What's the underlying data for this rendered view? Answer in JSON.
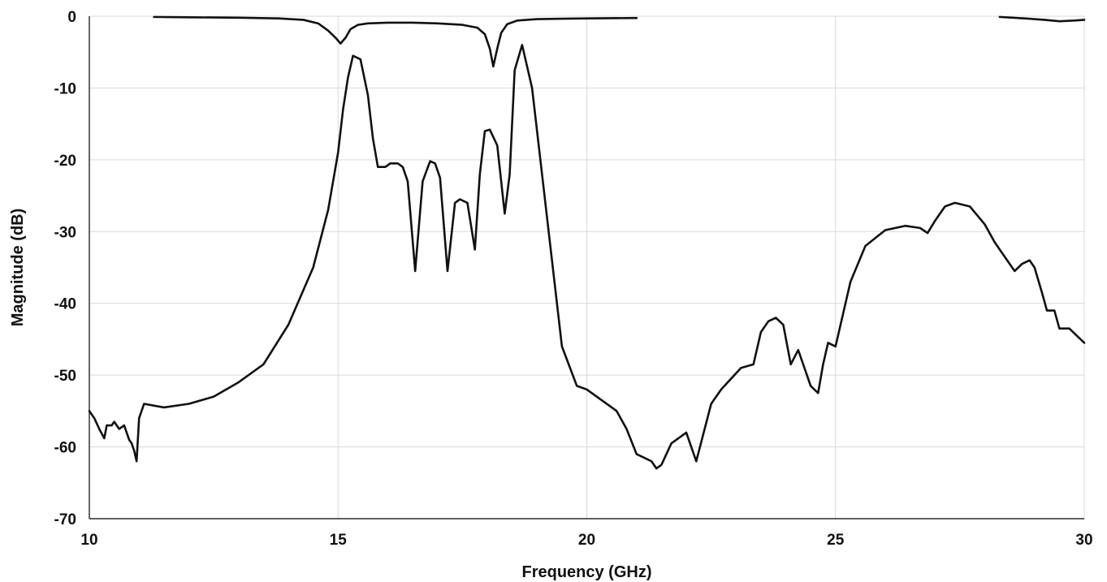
{
  "chart_data": {
    "type": "line",
    "title": "",
    "xlabel": "Frequency (GHz)",
    "ylabel": "Magnitude (dB)",
    "xlim": [
      10,
      30
    ],
    "ylim": [
      -70,
      0
    ],
    "x_ticks": [
      10,
      15,
      20,
      25,
      30
    ],
    "y_ticks": [
      0,
      -10,
      -20,
      -30,
      -40,
      -50,
      -60,
      -70
    ],
    "grid": true,
    "legend": "none",
    "line_color": "#111111",
    "series": [
      {
        "x": [
          11.3,
          12.0,
          13.0,
          13.8,
          14.3,
          14.6,
          14.8,
          14.95,
          15.05,
          15.15,
          15.25,
          15.4,
          15.6,
          16.0,
          16.5,
          17.0,
          17.5,
          17.8,
          17.95,
          18.05,
          18.12,
          18.2,
          18.28,
          18.4,
          18.6,
          19.0,
          19.5,
          20.0,
          21.0
        ],
        "y": [
          -0.1,
          -0.15,
          -0.2,
          -0.3,
          -0.5,
          -1.0,
          -2.0,
          -3.0,
          -3.8,
          -3.0,
          -1.8,
          -1.2,
          -1.0,
          -0.9,
          -0.9,
          -1.0,
          -1.2,
          -1.6,
          -2.5,
          -4.5,
          -7.0,
          -4.5,
          -2.3,
          -1.1,
          -0.6,
          -0.4,
          -0.35,
          -0.3,
          -0.25
        ]
      },
      {
        "x": [
          28.3,
          28.8,
          29.2,
          29.5,
          29.8,
          30.0
        ],
        "y": [
          -0.1,
          -0.3,
          -0.5,
          -0.7,
          -0.6,
          -0.5
        ]
      },
      {
        "x": [
          10.0,
          10.1,
          10.2,
          10.3,
          10.35,
          10.45,
          10.5,
          10.6,
          10.7,
          10.8,
          10.85,
          10.9,
          10.95,
          11.0,
          11.1,
          11.5,
          12.0,
          12.5,
          13.0,
          13.5,
          14.0,
          14.5,
          14.8,
          15.0,
          15.1,
          15.2,
          15.3,
          15.45,
          15.6,
          15.7,
          15.8,
          15.95,
          16.05,
          16.2,
          16.3,
          16.4,
          16.55,
          16.7,
          16.85,
          16.95,
          17.05,
          17.2,
          17.35,
          17.45,
          17.6,
          17.75,
          17.85,
          17.95,
          18.05,
          18.2,
          18.35,
          18.45,
          18.55,
          18.7,
          18.9,
          19.2,
          19.5,
          19.8,
          20.0,
          20.3,
          20.6,
          20.8,
          21.0,
          21.15,
          21.3,
          21.4,
          21.5,
          21.7,
          22.0,
          22.2,
          22.5,
          22.7,
          22.9,
          23.1,
          23.35,
          23.5,
          23.65,
          23.8,
          23.95,
          24.1,
          24.25,
          24.35,
          24.5,
          24.65,
          24.75,
          24.85,
          25.0,
          25.3,
          25.6,
          26.0,
          26.4,
          26.7,
          26.85,
          27.0,
          27.2,
          27.4,
          27.7,
          28.0,
          28.2,
          28.4,
          28.6,
          28.75,
          28.9,
          29.0,
          29.15,
          29.25,
          29.4,
          29.5,
          29.7,
          29.85,
          30.0
        ],
        "y": [
          -55.0,
          -56.0,
          -57.5,
          -58.8,
          -57.0,
          -57.0,
          -56.5,
          -57.5,
          -57.0,
          -59.0,
          -59.5,
          -60.5,
          -62.0,
          -56.0,
          -54.0,
          -54.5,
          -54.0,
          -53.0,
          -51.0,
          -48.5,
          -43.0,
          -35.0,
          -27.0,
          -19.0,
          -13.0,
          -8.5,
          -5.5,
          -6.0,
          -11.0,
          -17.0,
          -21.0,
          -21.0,
          -20.5,
          -20.5,
          -21.0,
          -23.0,
          -35.5,
          -23.0,
          -20.2,
          -20.5,
          -22.5,
          -35.5,
          -26.0,
          -25.5,
          -26.0,
          -32.5,
          -22.0,
          -16.0,
          -15.8,
          -18.0,
          -27.5,
          -22.0,
          -7.5,
          -4.0,
          -10.0,
          -28.0,
          -46.0,
          -51.5,
          -52.0,
          -53.5,
          -55.0,
          -57.5,
          -61.0,
          -61.5,
          -62.0,
          -63.0,
          -62.5,
          -59.5,
          -58.0,
          -62.0,
          -54.0,
          -52.0,
          -50.5,
          -49.0,
          -48.5,
          -44.0,
          -42.5,
          -42.0,
          -43.0,
          -48.5,
          -46.5,
          -48.5,
          -51.5,
          -52.5,
          -48.5,
          -45.5,
          -46.0,
          -37.0,
          -32.0,
          -29.8,
          -29.2,
          -29.5,
          -30.2,
          -28.5,
          -26.5,
          -26.0,
          -26.5,
          -29.0,
          -31.5,
          -33.5,
          -35.5,
          -34.5,
          -34.0,
          -35.0,
          -38.5,
          -41.0,
          -41.0,
          -43.5,
          -43.5,
          -44.5,
          -45.5
        ]
      }
    ]
  }
}
